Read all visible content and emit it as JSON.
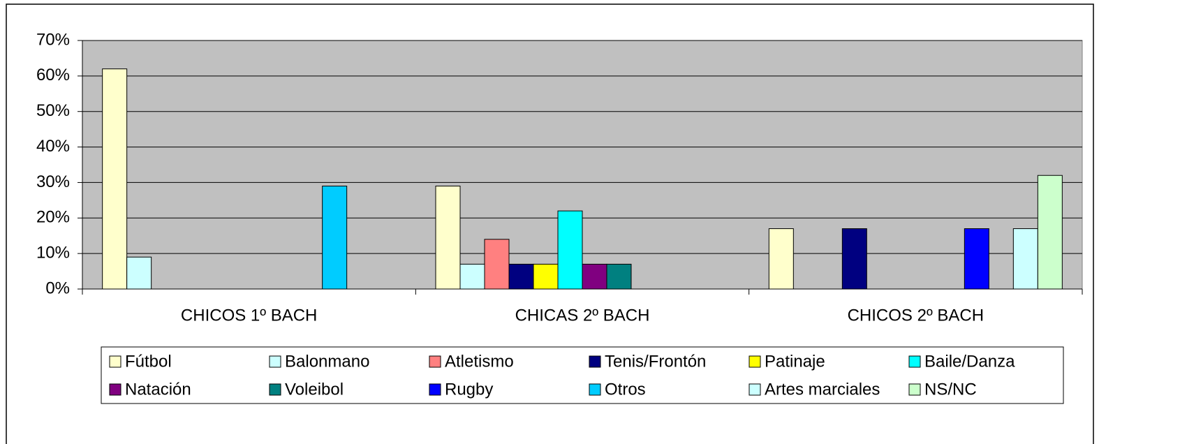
{
  "chart_data": {
    "type": "bar",
    "categories": [
      "CHICOS 1º BACH",
      "CHICAS 2º BACH",
      "CHICOS 2º BACH"
    ],
    "series": [
      {
        "name": "Fútbol",
        "color": "#FFFFCC",
        "values": [
          62,
          29,
          17
        ]
      },
      {
        "name": "Balonmano",
        "color": "#CCFFFF",
        "values": [
          9,
          7,
          0
        ]
      },
      {
        "name": "Atletismo",
        "color": "#FF8080",
        "values": [
          0,
          14,
          0
        ]
      },
      {
        "name": "Tenis/Frontón",
        "color": "#000080",
        "values": [
          0,
          7,
          17
        ]
      },
      {
        "name": "Patinaje",
        "color": "#FFFF00",
        "values": [
          0,
          7,
          0
        ]
      },
      {
        "name": "Baile/Danza",
        "color": "#00FFFF",
        "values": [
          0,
          22,
          0
        ]
      },
      {
        "name": "Natación",
        "color": "#800080",
        "values": [
          0,
          7,
          0
        ]
      },
      {
        "name": "Voleibol",
        "color": "#008080",
        "values": [
          0,
          7,
          0
        ]
      },
      {
        "name": "Rugby",
        "color": "#0000FF",
        "values": [
          0,
          0,
          17
        ]
      },
      {
        "name": "Otros",
        "color": "#00CCFF",
        "values": [
          29,
          0,
          0
        ]
      },
      {
        "name": "Artes marciales",
        "color": "#CCFFFF",
        "values": [
          0,
          0,
          17
        ]
      },
      {
        "name": "NS/NC",
        "color": "#CCFFCC",
        "values": [
          0,
          0,
          32
        ]
      }
    ],
    "ylim": [
      0,
      70
    ],
    "yticks": [
      {
        "value": 0,
        "label": "0%"
      },
      {
        "value": 10,
        "label": "10%"
      },
      {
        "value": 20,
        "label": "20%"
      },
      {
        "value": 30,
        "label": "30%"
      },
      {
        "value": 40,
        "label": "40%"
      },
      {
        "value": 50,
        "label": "50%"
      },
      {
        "value": 60,
        "label": "60%"
      },
      {
        "value": 70,
        "label": "70%"
      }
    ],
    "grid": true,
    "plot_background": "#C0C0C0",
    "legend": "bottom"
  }
}
